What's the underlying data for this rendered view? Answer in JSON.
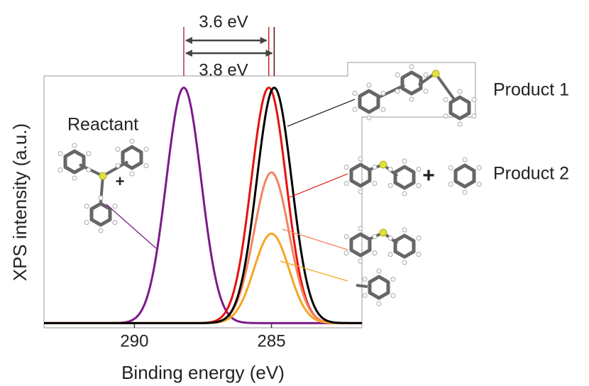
{
  "chart_data": {
    "type": "gaussian-peaks",
    "x_label": "Binding energy (eV)",
    "y_label": "XPS intensity (a.u.)",
    "xlim": [
      293.3,
      281.7
    ],
    "xticks": [
      290,
      285
    ],
    "ylim": [
      -0.02,
      1.05
    ],
    "series": [
      {
        "name": "Reactant",
        "color": "#7b1a8a",
        "center": 288.2,
        "height": 1.0,
        "fwhm": 1.5
      },
      {
        "name": "Product 2",
        "color": "#e8120f",
        "center": 285.1,
        "height": 1.0,
        "fwhm": 1.5
      },
      {
        "color": "#f4845f",
        "center": 285.0,
        "height": 0.64,
        "fwhm": 1.5
      },
      {
        "color": "#f5a623",
        "center": 285.0,
        "height": 0.38,
        "fwhm": 1.5
      },
      {
        "name": "Product 1",
        "color": "#000000",
        "center": 284.9,
        "height": 1.0,
        "fwhm": 1.5
      }
    ],
    "annotations": [
      "3.6 eV",
      "3.8 eV",
      "+"
    ]
  }
}
